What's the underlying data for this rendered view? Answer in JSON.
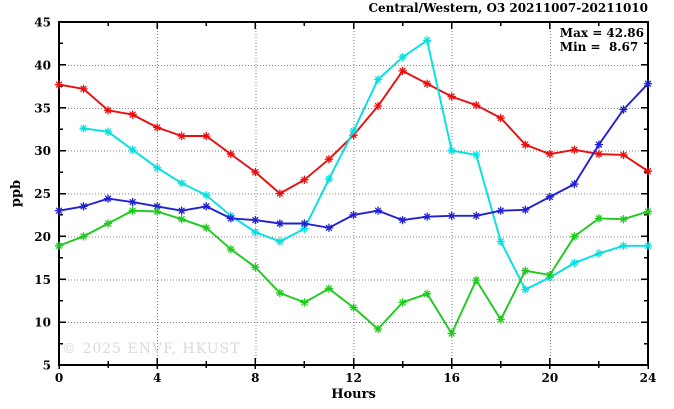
{
  "header": {
    "title": "Central/Western, O3 20211007-20211010"
  },
  "stats": {
    "max_label": "Max = 42.86",
    "min_label": "Min =  8.67"
  },
  "watermark": "© 2025 ENVF, HKUST",
  "chart_data": {
    "type": "line",
    "title": "Central/Western, O3 20211007-20211010",
    "xlabel": "Hours",
    "ylabel": "ppb",
    "xlim": [
      0,
      24
    ],
    "ylim": [
      5,
      45
    ],
    "x_major_ticks": [
      0,
      4,
      8,
      12,
      16,
      20,
      24
    ],
    "x_minor_step": 2,
    "y_major_ticks": [
      5,
      10,
      15,
      20,
      25,
      30,
      35,
      40,
      45
    ],
    "y_minor_step": 2.5,
    "grid": "dotted",
    "legend_position": "none",
    "annotations": {
      "max": 42.86,
      "min": 8.67
    },
    "x": [
      0,
      1,
      2,
      3,
      4,
      5,
      6,
      7,
      8,
      9,
      10,
      11,
      12,
      13,
      14,
      15,
      16,
      17,
      18,
      19,
      20,
      21,
      22,
      23,
      24
    ],
    "series": [
      {
        "name": "day-red",
        "color": "#ec0d0d",
        "values": [
          37.7,
          37.2,
          34.7,
          34.2,
          32.7,
          31.7,
          31.7,
          29.6,
          27.5,
          25.0,
          26.6,
          29.0,
          31.8,
          35.2,
          39.3,
          37.8,
          36.3,
          35.3,
          33.8,
          30.7,
          29.6,
          30.1,
          29.6,
          29.5,
          27.6
        ]
      },
      {
        "name": "day-cyan",
        "color": "#00e2e2",
        "values": [
          null,
          32.6,
          32.2,
          30.1,
          28.0,
          26.2,
          24.8,
          22.4,
          20.5,
          19.4,
          20.9,
          26.7,
          32.3,
          38.3,
          40.9,
          42.86,
          30.0,
          29.5,
          19.4,
          13.8,
          15.2,
          16.9,
          18.0,
          18.9,
          18.9
        ]
      },
      {
        "name": "day-blue",
        "color": "#2121d3",
        "values": [
          23.0,
          23.5,
          24.4,
          24.0,
          23.5,
          23.0,
          23.5,
          22.1,
          21.9,
          21.5,
          21.5,
          21.0,
          22.5,
          23.0,
          21.9,
          22.3,
          22.4,
          22.4,
          23.0,
          23.1,
          24.6,
          26.1,
          30.7,
          34.8,
          37.8
        ]
      },
      {
        "name": "day-green",
        "color": "#1dcb1d",
        "values": [
          18.9,
          20.0,
          21.5,
          23.0,
          22.9,
          22.0,
          21.0,
          18.5,
          16.4,
          13.4,
          12.3,
          13.9,
          11.7,
          9.2,
          12.3,
          13.3,
          8.67,
          14.9,
          10.3,
          16.0,
          15.5,
          20.0,
          22.1,
          22.0,
          22.9
        ]
      }
    ]
  }
}
